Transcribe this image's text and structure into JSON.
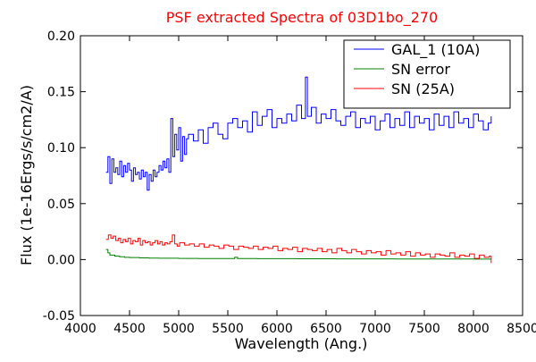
{
  "chart_data": {
    "type": "line",
    "title": "PSF extracted Spectra of 03D1bo_270",
    "title_color": "#ff0000",
    "xlabel": "Wavelength (Ang.)",
    "ylabel": "Flux (1e-16Ergs/s/cm2/A)",
    "xlim": [
      4000,
      8500
    ],
    "ylim": [
      -0.05,
      0.2
    ],
    "x_ticks": [
      4000,
      4500,
      5000,
      5500,
      6000,
      6500,
      7000,
      7500,
      8000,
      8500
    ],
    "y_ticks": [
      -0.05,
      0.0,
      0.05,
      0.1,
      0.15,
      0.2
    ],
    "x_tick_labels": [
      "4000",
      "4500",
      "5000",
      "5500",
      "6000",
      "6500",
      "7000",
      "7500",
      "8000",
      "8500"
    ],
    "y_tick_labels": [
      "-0.05",
      "0.00",
      "0.05",
      "0.10",
      "0.15",
      "0.20"
    ],
    "grid": false,
    "legend_position": "top-right",
    "series": [
      {
        "name": "GAL_1 (10A)",
        "color": "#0000ff",
        "x": [
          4260,
          4280,
          4300,
          4320,
          4340,
          4360,
          4380,
          4400,
          4420,
          4440,
          4460,
          4480,
          4500,
          4520,
          4540,
          4560,
          4580,
          4600,
          4620,
          4640,
          4660,
          4680,
          4700,
          4720,
          4740,
          4760,
          4780,
          4800,
          4820,
          4840,
          4860,
          4880,
          4900,
          4920,
          4940,
          4960,
          4980,
          5000,
          5020,
          5040,
          5060,
          5080,
          5100,
          5150,
          5200,
          5250,
          5300,
          5350,
          5400,
          5450,
          5500,
          5550,
          5600,
          5650,
          5700,
          5750,
          5800,
          5850,
          5900,
          5950,
          6000,
          6050,
          6100,
          6150,
          6200,
          6250,
          6290,
          6310,
          6350,
          6400,
          6450,
          6500,
          6550,
          6600,
          6650,
          6700,
          6750,
          6800,
          6850,
          6900,
          6950,
          7000,
          7050,
          7100,
          7150,
          7200,
          7250,
          7300,
          7350,
          7400,
          7450,
          7500,
          7550,
          7600,
          7650,
          7700,
          7750,
          7800,
          7850,
          7900,
          7950,
          8000,
          8050,
          8100,
          8150,
          8180
        ],
        "y": [
          0.078,
          0.092,
          0.068,
          0.09,
          0.078,
          0.082,
          0.076,
          0.088,
          0.074,
          0.084,
          0.078,
          0.086,
          0.08,
          0.07,
          0.082,
          0.076,
          0.078,
          0.072,
          0.08,
          0.074,
          0.078,
          0.062,
          0.076,
          0.07,
          0.08,
          0.074,
          0.078,
          0.084,
          0.08,
          0.088,
          0.082,
          0.09,
          0.078,
          0.126,
          0.092,
          0.112,
          0.098,
          0.118,
          0.088,
          0.11,
          0.094,
          0.108,
          0.112,
          0.106,
          0.116,
          0.104,
          0.118,
          0.122,
          0.112,
          0.108,
          0.122,
          0.126,
          0.118,
          0.124,
          0.114,
          0.132,
          0.12,
          0.128,
          0.134,
          0.118,
          0.126,
          0.122,
          0.13,
          0.124,
          0.138,
          0.126,
          0.163,
          0.128,
          0.136,
          0.122,
          0.13,
          0.126,
          0.134,
          0.124,
          0.12,
          0.128,
          0.132,
          0.118,
          0.126,
          0.122,
          0.128,
          0.116,
          0.124,
          0.13,
          0.118,
          0.126,
          0.12,
          0.132,
          0.118,
          0.128,
          0.122,
          0.126,
          0.116,
          0.13,
          0.12,
          0.128,
          0.118,
          0.132,
          0.122,
          0.126,
          0.118,
          0.13,
          0.124,
          0.116,
          0.122,
          0.128
        ]
      },
      {
        "name": "SN error",
        "color": "#008000",
        "x": [
          4260,
          4280,
          4300,
          4350,
          4400,
          4450,
          4500,
          4600,
          4700,
          4800,
          5000,
          5200,
          5400,
          5550,
          5570,
          5600,
          5800,
          6000,
          6200,
          6400,
          6600,
          6800,
          7000,
          7200,
          7400,
          7600,
          7800,
          8000,
          8180
        ],
        "y": [
          0.009,
          0.006,
          0.004,
          0.003,
          0.0025,
          0.002,
          0.0018,
          0.0015,
          0.0013,
          0.0012,
          0.001,
          0.0009,
          0.0009,
          0.0009,
          0.002,
          0.0009,
          0.0008,
          0.0008,
          0.0007,
          0.0007,
          0.0006,
          0.0006,
          0.0006,
          0.0005,
          0.0005,
          0.0005,
          0.0005,
          0.0004,
          0.0004
        ]
      },
      {
        "name": "SN (25A)",
        "color": "#ff0000",
        "x": [
          4260,
          4285,
          4310,
          4335,
          4360,
          4385,
          4410,
          4435,
          4460,
          4485,
          4510,
          4535,
          4560,
          4585,
          4610,
          4635,
          4660,
          4685,
          4710,
          4735,
          4760,
          4785,
          4810,
          4835,
          4860,
          4885,
          4910,
          4935,
          4960,
          4985,
          5010,
          5060,
          5110,
          5160,
          5210,
          5260,
          5310,
          5360,
          5410,
          5460,
          5510,
          5560,
          5610,
          5660,
          5710,
          5760,
          5810,
          5860,
          5910,
          5960,
          6010,
          6060,
          6110,
          6160,
          6210,
          6260,
          6310,
          6360,
          6410,
          6460,
          6510,
          6560,
          6610,
          6660,
          6710,
          6760,
          6810,
          6860,
          6910,
          6960,
          7010,
          7060,
          7110,
          7160,
          7210,
          7260,
          7310,
          7360,
          7410,
          7460,
          7510,
          7560,
          7610,
          7660,
          7710,
          7760,
          7810,
          7860,
          7910,
          7960,
          8010,
          8060,
          8110,
          8160,
          8180
        ],
        "y": [
          0.018,
          0.022,
          0.019,
          0.021,
          0.017,
          0.019,
          0.015,
          0.018,
          0.016,
          0.019,
          0.014,
          0.017,
          0.016,
          0.019,
          0.013,
          0.017,
          0.015,
          0.016,
          0.013,
          0.015,
          0.017,
          0.014,
          0.016,
          0.013,
          0.015,
          0.014,
          0.016,
          0.022,
          0.014,
          0.012,
          0.015,
          0.013,
          0.014,
          0.012,
          0.014,
          0.011,
          0.013,
          0.012,
          0.01,
          0.013,
          0.012,
          0.009,
          0.012,
          0.011,
          0.01,
          0.012,
          0.009,
          0.011,
          0.01,
          0.012,
          0.008,
          0.01,
          0.009,
          0.011,
          0.007,
          0.01,
          0.009,
          0.008,
          0.01,
          0.007,
          0.009,
          0.006,
          0.01,
          0.008,
          0.006,
          0.009,
          0.007,
          0.005,
          0.008,
          0.006,
          0.007,
          0.004,
          0.008,
          0.005,
          0.006,
          0.004,
          0.007,
          0.003,
          0.006,
          0.004,
          0.005,
          0.002,
          0.005,
          0.004,
          0.003,
          0.006,
          0.002,
          0.004,
          0.003,
          0.005,
          0.001,
          0.004,
          0.002,
          0.003,
          -0.003
        ]
      }
    ]
  }
}
